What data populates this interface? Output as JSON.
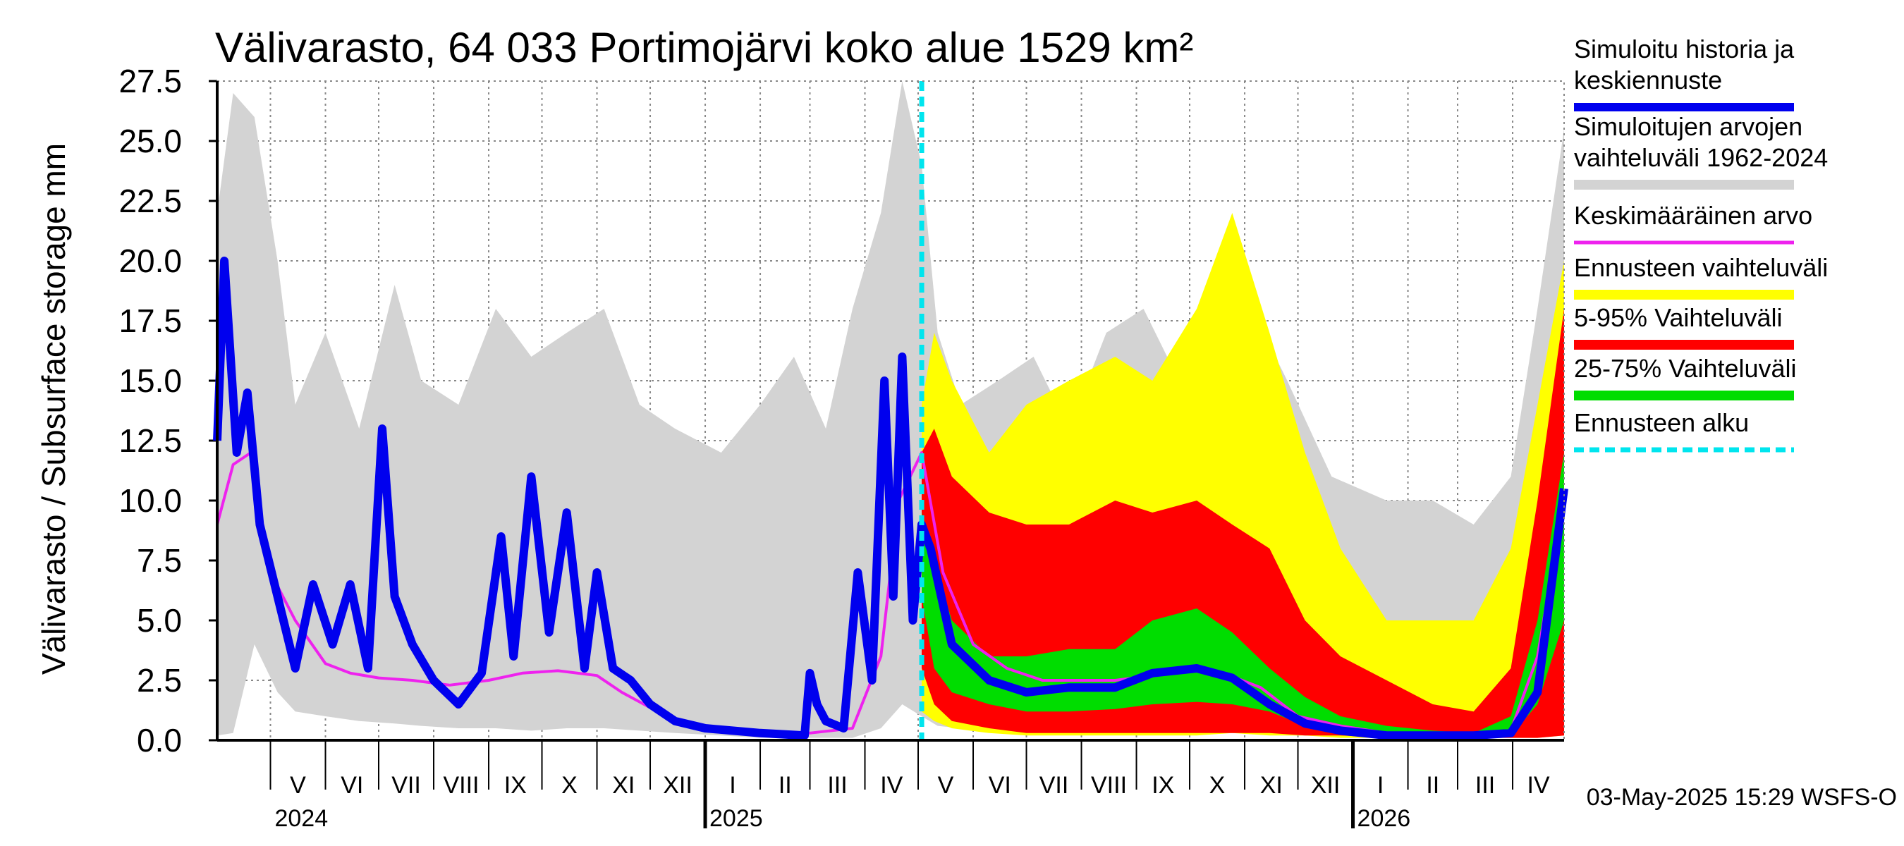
{
  "chart_data": {
    "type": "area",
    "title": "Välivarasto, 64 033 Portimojärvi koko alue 1529 km²",
    "ylabel": "Välivarasto / Subsurface storage  mm",
    "ylim": [
      0,
      27.5
    ],
    "yticks": [
      "0.0",
      "2.5",
      "5.0",
      "7.5",
      "10.0",
      "12.5",
      "15.0",
      "17.5",
      "20.0",
      "22.5",
      "25.0",
      "27.5"
    ],
    "x_start": "2024-04-01",
    "x_end": "2026-04-30",
    "forecast_start": "2025-05-03",
    "grid": true,
    "legend_position": "right",
    "months": [
      {
        "label": "V",
        "start": "2024-05-01"
      },
      {
        "label": "VI",
        "start": "2024-06-01"
      },
      {
        "label": "VII",
        "start": "2024-07-01"
      },
      {
        "label": "VIII",
        "start": "2024-08-01"
      },
      {
        "label": "IX",
        "start": "2024-09-01"
      },
      {
        "label": "X",
        "start": "2024-10-01"
      },
      {
        "label": "XI",
        "start": "2024-11-01"
      },
      {
        "label": "XII",
        "start": "2024-12-01"
      },
      {
        "label": "I",
        "start": "2025-01-01"
      },
      {
        "label": "II",
        "start": "2025-02-01"
      },
      {
        "label": "III",
        "start": "2025-03-01"
      },
      {
        "label": "IV",
        "start": "2025-04-01"
      },
      {
        "label": "V",
        "start": "2025-05-01"
      },
      {
        "label": "VI",
        "start": "2025-06-01"
      },
      {
        "label": "VII",
        "start": "2025-07-01"
      },
      {
        "label": "VIII",
        "start": "2025-08-01"
      },
      {
        "label": "IX",
        "start": "2025-09-01"
      },
      {
        "label": "X",
        "start": "2025-10-01"
      },
      {
        "label": "XI",
        "start": "2025-11-01"
      },
      {
        "label": "XII",
        "start": "2025-12-01"
      },
      {
        "label": "I",
        "start": "2026-01-01"
      },
      {
        "label": "II",
        "start": "2026-02-01"
      },
      {
        "label": "III",
        "start": "2026-03-01"
      },
      {
        "label": "IV",
        "start": "2026-04-01"
      }
    ],
    "year_labels": [
      {
        "label": "2024",
        "date": "2024-05-01"
      },
      {
        "label": "2025",
        "date": "2025-01-01"
      },
      {
        "label": "2026",
        "date": "2026-01-01"
      }
    ],
    "series": [
      {
        "name": "Simuloitujen arvojen vaihteluväli 1962-2024",
        "kind": "band",
        "color": "#d3d3d3",
        "x": [
          "2024-04-01",
          "2024-04-10",
          "2024-04-22",
          "2024-05-05",
          "2024-05-15",
          "2024-06-01",
          "2024-06-20",
          "2024-07-10",
          "2024-07-25",
          "2024-08-15",
          "2024-09-05",
          "2024-09-25",
          "2024-10-15",
          "2024-11-05",
          "2024-11-25",
          "2024-12-15",
          "2025-01-10",
          "2025-02-01",
          "2025-02-20",
          "2025-03-10",
          "2025-03-25",
          "2025-04-10",
          "2025-04-22",
          "2025-05-03",
          "2025-05-12",
          "2025-05-25",
          "2025-06-15",
          "2025-07-05",
          "2025-07-25",
          "2025-08-15",
          "2025-09-05",
          "2025-09-25",
          "2025-10-15",
          "2025-11-05",
          "2025-11-25",
          "2025-12-20",
          "2026-01-20",
          "2026-02-15",
          "2026-03-10",
          "2026-03-31",
          "2026-04-15",
          "2026-04-30"
        ],
        "low": [
          0.2,
          0.3,
          4.0,
          2.0,
          1.2,
          1.0,
          0.8,
          0.7,
          0.6,
          0.5,
          0.5,
          0.4,
          0.5,
          0.5,
          0.4,
          0.3,
          0.2,
          0.1,
          0.1,
          0.1,
          0.1,
          0.5,
          1.5,
          1.0,
          0.6,
          0.5,
          0.4,
          0.3,
          0.3,
          0.3,
          0.3,
          0.3,
          0.3,
          0.3,
          0.2,
          0.2,
          0.1,
          0.1,
          0.1,
          0.1,
          0.3,
          0.5
        ],
        "high": [
          22.0,
          27.0,
          26.0,
          20.0,
          14.0,
          17.0,
          13.0,
          19.0,
          15.0,
          14.0,
          18.0,
          16.0,
          17.0,
          18.0,
          14.0,
          13.0,
          12.0,
          14.0,
          16.0,
          13.0,
          18.0,
          22.0,
          27.5,
          24.0,
          17.0,
          14.0,
          15.0,
          16.0,
          13.0,
          17.0,
          18.0,
          15.0,
          16.0,
          18.0,
          15.0,
          11.0,
          10.0,
          10.0,
          9.0,
          11.0,
          18.0,
          25.5
        ]
      },
      {
        "name": "Ennusteen vaihteluväli",
        "kind": "band",
        "color": "#ffff00",
        "x": [
          "2025-05-03",
          "2025-05-10",
          "2025-05-20",
          "2025-06-10",
          "2025-07-01",
          "2025-07-25",
          "2025-08-20",
          "2025-09-10",
          "2025-10-05",
          "2025-10-25",
          "2025-11-15",
          "2025-12-05",
          "2025-12-25",
          "2026-01-20",
          "2026-02-15",
          "2026-03-10",
          "2026-03-31",
          "2026-04-15",
          "2026-04-30"
        ],
        "low": [
          1.2,
          0.8,
          0.5,
          0.3,
          0.2,
          0.2,
          0.2,
          0.2,
          0.2,
          0.3,
          0.2,
          0.2,
          0.1,
          0.1,
          0.1,
          0.1,
          0.1,
          0.1,
          0.2
        ],
        "high": [
          14.0,
          17.0,
          15.0,
          12.0,
          14.0,
          15.0,
          16.0,
          15.0,
          18.0,
          22.0,
          17.0,
          12.0,
          8.0,
          5.0,
          5.0,
          5.0,
          8.0,
          14.0,
          20.0
        ]
      },
      {
        "name": "5-95% Vaihteluväli",
        "kind": "band",
        "color": "#ff0000",
        "x": [
          "2025-05-03",
          "2025-05-10",
          "2025-05-20",
          "2025-06-10",
          "2025-07-01",
          "2025-07-25",
          "2025-08-20",
          "2025-09-10",
          "2025-10-05",
          "2025-10-25",
          "2025-11-15",
          "2025-12-05",
          "2025-12-25",
          "2026-01-20",
          "2026-02-15",
          "2026-03-10",
          "2026-03-31",
          "2026-04-15",
          "2026-04-30"
        ],
        "low": [
          3.0,
          1.5,
          0.8,
          0.5,
          0.3,
          0.3,
          0.3,
          0.3,
          0.3,
          0.3,
          0.3,
          0.2,
          0.2,
          0.1,
          0.1,
          0.1,
          0.1,
          0.1,
          0.2
        ],
        "high": [
          12.0,
          13.0,
          11.0,
          9.5,
          9.0,
          9.0,
          10.0,
          9.5,
          10.0,
          9.0,
          8.0,
          5.0,
          3.5,
          2.5,
          1.5,
          1.2,
          3.0,
          10.0,
          18.0
        ]
      },
      {
        "name": "25-75% Vaihteluväli",
        "kind": "band",
        "color": "#00dd00",
        "x": [
          "2025-05-03",
          "2025-05-10",
          "2025-05-20",
          "2025-06-10",
          "2025-07-01",
          "2025-07-25",
          "2025-08-20",
          "2025-09-10",
          "2025-10-05",
          "2025-10-25",
          "2025-11-15",
          "2025-12-05",
          "2025-12-25",
          "2026-01-20",
          "2026-02-15",
          "2026-03-10",
          "2026-03-31",
          "2026-04-15",
          "2026-04-30"
        ],
        "low": [
          6.0,
          3.0,
          2.0,
          1.5,
          1.2,
          1.2,
          1.3,
          1.5,
          1.6,
          1.5,
          1.2,
          0.6,
          0.4,
          0.2,
          0.2,
          0.1,
          0.2,
          1.5,
          5.0
        ],
        "high": [
          9.5,
          7.5,
          5.0,
          3.5,
          3.5,
          3.8,
          3.8,
          5.0,
          5.5,
          4.5,
          3.0,
          1.8,
          1.0,
          0.6,
          0.4,
          0.3,
          1.0,
          5.0,
          12.0
        ]
      },
      {
        "name": "Keskimääräinen arvo",
        "kind": "line",
        "color": "#ee22ee",
        "x": [
          "2024-04-01",
          "2024-04-10",
          "2024-04-20",
          "2024-05-01",
          "2024-05-15",
          "2024-06-01",
          "2024-06-15",
          "2024-07-01",
          "2024-07-20",
          "2024-08-10",
          "2024-09-01",
          "2024-09-20",
          "2024-10-10",
          "2024-11-01",
          "2024-11-15",
          "2024-12-10",
          "2025-01-01",
          "2025-02-01",
          "2025-03-01",
          "2025-03-25",
          "2025-04-10",
          "2025-04-20",
          "2025-05-03",
          "2025-05-15",
          "2025-06-01",
          "2025-06-20",
          "2025-07-10",
          "2025-08-01",
          "2025-08-20",
          "2025-09-10",
          "2025-10-01",
          "2025-10-20",
          "2025-11-10",
          "2025-12-01",
          "2025-12-25",
          "2026-01-20",
          "2026-02-15",
          "2026-03-10",
          "2026-03-31",
          "2026-04-15",
          "2026-04-30"
        ],
        "y": [
          9.0,
          11.5,
          12.0,
          7.0,
          5.0,
          3.2,
          2.8,
          2.6,
          2.5,
          2.3,
          2.5,
          2.8,
          2.9,
          2.7,
          2.0,
          1.0,
          0.6,
          0.4,
          0.3,
          0.5,
          3.5,
          10.0,
          12.0,
          7.0,
          4.0,
          3.0,
          2.5,
          2.5,
          2.5,
          2.7,
          3.0,
          2.8,
          2.2,
          1.0,
          0.6,
          0.3,
          0.2,
          0.2,
          0.4,
          3.5,
          10.0
        ]
      },
      {
        "name": "Simuloitu historia ja keskiennuste",
        "kind": "line",
        "color": "#0000ee",
        "x": [
          "2024-04-01",
          "2024-04-05",
          "2024-04-12",
          "2024-04-18",
          "2024-04-25",
          "2024-05-05",
          "2024-05-15",
          "2024-05-25",
          "2024-06-05",
          "2024-06-15",
          "2024-06-25",
          "2024-07-03",
          "2024-07-10",
          "2024-07-20",
          "2024-08-01",
          "2024-08-15",
          "2024-08-28",
          "2024-09-08",
          "2024-09-15",
          "2024-09-25",
          "2024-10-05",
          "2024-10-15",
          "2024-10-25",
          "2024-11-01",
          "2024-11-10",
          "2024-11-20",
          "2024-12-01",
          "2024-12-15",
          "2025-01-01",
          "2025-02-01",
          "2025-02-26",
          "2025-03-01",
          "2025-03-05",
          "2025-03-10",
          "2025-03-20",
          "2025-03-28",
          "2025-04-05",
          "2025-04-12",
          "2025-04-17",
          "2025-04-22",
          "2025-04-28",
          "2025-05-03",
          "2025-05-08",
          "2025-05-20",
          "2025-06-10",
          "2025-07-01",
          "2025-07-25",
          "2025-08-20",
          "2025-09-10",
          "2025-10-05",
          "2025-10-25",
          "2025-11-15",
          "2025-12-05",
          "2025-12-25",
          "2026-01-20",
          "2026-02-15",
          "2026-03-10",
          "2026-03-31",
          "2026-04-15",
          "2026-04-30"
        ],
        "y": [
          12.5,
          20.0,
          12.0,
          14.5,
          9.0,
          6.0,
          3.0,
          6.5,
          4.0,
          6.5,
          3.0,
          13.0,
          6.0,
          4.0,
          2.5,
          1.5,
          2.8,
          8.5,
          3.5,
          11.0,
          4.5,
          9.5,
          3.0,
          7.0,
          3.0,
          2.5,
          1.5,
          0.8,
          0.5,
          0.3,
          0.2,
          2.8,
          1.5,
          0.8,
          0.5,
          7.0,
          2.5,
          15.0,
          6.0,
          16.0,
          5.0,
          9.0,
          8.0,
          4.0,
          2.5,
          2.0,
          2.2,
          2.2,
          2.8,
          3.0,
          2.6,
          1.5,
          0.7,
          0.4,
          0.2,
          0.2,
          0.2,
          0.3,
          2.0,
          10.5
        ]
      }
    ],
    "legend": [
      {
        "label": "Simuloitu historia ja keskiennuste",
        "color": "#0000ee",
        "style": "solid"
      },
      {
        "label": "Simuloitujen arvojen vaihteluväli 1962-2024",
        "color": "#d3d3d3",
        "style": "solid"
      },
      {
        "label": "Keskimääräinen arvo",
        "color": "#ee22ee",
        "style": "solid"
      },
      {
        "label": "Ennusteen vaihteluväli",
        "color": "#ffff00",
        "style": "solid"
      },
      {
        "label": "5-95% Vaihteluväli",
        "color": "#ff0000",
        "style": "solid"
      },
      {
        "label": "25-75% Vaihteluväli",
        "color": "#00dd00",
        "style": "solid"
      },
      {
        "label": "Ennusteen alku",
        "color": "#00e5ee",
        "style": "dashed"
      }
    ],
    "footer": "03-May-2025 15:29 WSFS-O"
  }
}
